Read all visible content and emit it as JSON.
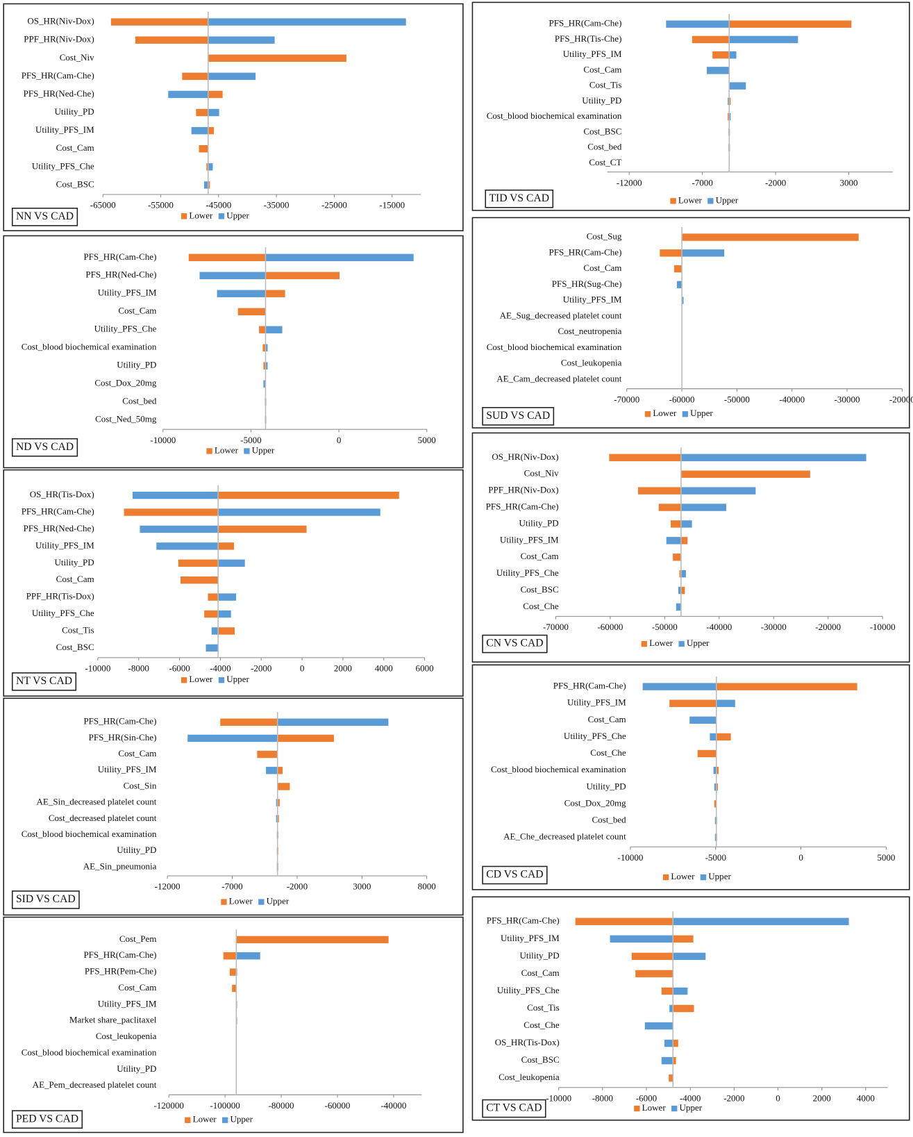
{
  "chart_data": [
    {
      "type": "tornado",
      "title": "NN VS CAD",
      "categories": [
        "OS_HR(Niv-Dox)",
        "PPF_HR(Niv-Dox)",
        "Cost_Niv",
        "PFS_HR(Cam-Che)",
        "PFS_HR(Ned-Che)",
        "Utility_PD",
        "Utility_PFS_IM",
        "Cost_Cam",
        "Utility_PFS_Che",
        "Cost_BSC"
      ],
      "base_value": -46800,
      "series": [
        {
          "name": "Lower",
          "color": "#ed7d31",
          "values": [
            -63600,
            -59400,
            -22900,
            -51300,
            -44300,
            -48900,
            -45800,
            -48400,
            -47100,
            -46500
          ]
        },
        {
          "name": "Upper",
          "color": "#5b9bd5",
          "values": [
            -12600,
            -35300,
            null,
            -38600,
            -53700,
            -44900,
            -49700,
            null,
            -46000,
            -47500
          ]
        }
      ],
      "xlim": [
        -65000,
        -10000
      ],
      "xticks": [
        -65000,
        -55000,
        -45000,
        -35000,
        -25000,
        -15000
      ]
    },
    {
      "type": "tornado",
      "title": "ND VS CAD",
      "categories": [
        "PFS_HR(Cam-Che)",
        "PFS_HR(Ned-Che)",
        "Utility_PFS_IM",
        "Cost_Cam",
        "Utility_PFS_Che",
        "Cost_blood biochemical examination",
        "Utility_PD",
        "Cost_Dox_20mg",
        "Cost_bed",
        "Cost_Ned_50mg"
      ],
      "base_value": -4170,
      "series": [
        {
          "name": "Lower",
          "color": "#ed7d31",
          "values": [
            -8540,
            40,
            -3060,
            -5740,
            -4540,
            -4330,
            -4290,
            null,
            -4210,
            -4210
          ]
        },
        {
          "name": "Upper",
          "color": "#5b9bd5",
          "values": [
            4250,
            -7920,
            -6930,
            null,
            -3220,
            -4050,
            -4050,
            -4290,
            -4130,
            -4130
          ]
        }
      ],
      "xlim": [
        -10000,
        5000
      ],
      "xticks": [
        -10000,
        -5000,
        0,
        5000
      ]
    },
    {
      "type": "tornado",
      "title": "NT VS CAD",
      "categories": [
        "OS_HR(Tis-Dox)",
        "PFS_HR(Cam-Che)",
        "PFS_HR(Ned-Che)",
        "Utility_PFS_IM",
        "Utility_PD",
        "Cost_Cam",
        "PPF_HR(Tis-Dox)",
        "Utility_PFS_Che",
        "Cost_Tis",
        "Cost_BSC"
      ],
      "base_value": -4110,
      "series": [
        {
          "name": "Lower",
          "color": "#ed7d31",
          "values": [
            4750,
            -8720,
            220,
            -3330,
            -6060,
            -5950,
            -4610,
            -4790,
            -3300,
            null
          ]
        },
        {
          "name": "Upper",
          "color": "#5b9bd5",
          "values": [
            -8300,
            3830,
            -7940,
            -7130,
            -2800,
            null,
            -3230,
            -3480,
            -4430,
            -4710
          ]
        }
      ],
      "xlim": [
        -10000,
        6000
      ],
      "xticks": [
        -10000,
        -8000,
        -6000,
        -4000,
        -2000,
        0,
        2000,
        4000,
        6000
      ]
    },
    {
      "type": "tornado",
      "title": "SID VS CAD",
      "categories": [
        "PFS_HR(Cam-Che)",
        "PFS_HR(Sin-Che)",
        "Cost_Cam",
        "Utility_PFS_IM",
        "Cost_Sin",
        "AE_Sin_decreased platelet count",
        "Cost_decreased platelet count",
        "Cost_blood biochemical examination",
        "Utility_PD",
        "AE_Sin_pneumonia"
      ],
      "base_value": -3510,
      "series": [
        {
          "name": "Lower",
          "color": "#ed7d31",
          "values": [
            -7920,
            840,
            -5080,
            -3120,
            -2560,
            -3340,
            -3400,
            -3450,
            -3450,
            -3450
          ]
        },
        {
          "name": "Upper",
          "color": "#5b9bd5",
          "values": [
            5040,
            -10440,
            null,
            -4400,
            null,
            -3620,
            -3620,
            -3560,
            -3560,
            -3560
          ]
        }
      ],
      "xlim": [
        -12000,
        8000
      ],
      "xticks": [
        -12000,
        -7000,
        -2000,
        3000,
        8000
      ]
    },
    {
      "type": "tornado",
      "title": "PED VS CAD",
      "categories": [
        "Cost_Pem",
        "PFS_HR(Cam-Che)",
        "PFS_HR(Pem-Che)",
        "Cost_Cam",
        "Utility_PFS_IM",
        "Market share_paclitaxel",
        "Cost_leukopenia",
        "Cost_blood biochemical examination",
        "Utility_PD",
        "AE_Pem_decreased platelet count"
      ],
      "base_value": -96000,
      "series": [
        {
          "name": "Lower",
          "color": "#ed7d31",
          "values": [
            -41800,
            -100600,
            -98300,
            -97500,
            null,
            null,
            null,
            null,
            null,
            null
          ]
        },
        {
          "name": "Upper",
          "color": "#5b9bd5",
          "values": [
            null,
            -87500,
            -95700,
            null,
            -95700,
            -95700,
            null,
            null,
            null,
            null
          ]
        }
      ],
      "xlim": [
        -120000,
        -30000
      ],
      "xticks": [
        -120000,
        -100000,
        -80000,
        -60000,
        -40000
      ]
    },
    {
      "type": "tornado",
      "title": "TID VS CAD",
      "categories": [
        "PFS_HR(Cam-Che)",
        "PFS_HR(Tis-Che)",
        "Utility_PFS_IM",
        "Cost_Cam",
        "Cost_Tis",
        "Utility_PD",
        "Cost_blood biochemical examination",
        "Cost_BSC",
        "Cost_bed",
        "Cost_CT"
      ],
      "base_value": -5170,
      "series": [
        {
          "name": "Lower",
          "color": "#ed7d31",
          "values": [
            3180,
            -7700,
            -6310,
            null,
            null,
            -5070,
            -5270,
            -5220,
            -5220,
            null
          ]
        },
        {
          "name": "Upper",
          "color": "#5b9bd5",
          "values": [
            -9480,
            -470,
            -4680,
            -6700,
            -4030,
            -5270,
            -5070,
            -5120,
            -5120,
            null
          ]
        }
      ],
      "xlim": [
        -13500,
        6000
      ],
      "xticks": [
        -12000,
        -7000,
        -2000,
        3000
      ]
    },
    {
      "type": "tornado",
      "title": "SUD VS CAD",
      "categories": [
        "Cost_Sug",
        "PFS_HR(Cam-Che)",
        "Cost_Cam",
        "PFS_HR(Sug-Che)",
        "Utility_PFS_IM",
        "AE_Sug_decreased platelet count",
        "Cost_neutropenia",
        "Cost_blood biochemical examination",
        "Cost_leukopenia",
        "AE_Cam_decreased platelet count"
      ],
      "base_value": -60000,
      "series": [
        {
          "name": "Lower",
          "color": "#ed7d31",
          "values": [
            -27900,
            -64000,
            -61400,
            null,
            null,
            null,
            null,
            null,
            null,
            null
          ]
        },
        {
          "name": "Upper",
          "color": "#5b9bd5",
          "values": [
            null,
            -52300,
            null,
            -60900,
            -59700,
            null,
            null,
            null,
            null,
            null
          ]
        }
      ],
      "xlim": [
        -70000,
        -20000
      ],
      "xticks": [
        -70000,
        -60000,
        -50000,
        -40000,
        -30000,
        -20000
      ]
    },
    {
      "type": "tornado",
      "title": "CN VS CAD",
      "categories": [
        "OS_HR(Niv-Dox)",
        "Cost_Niv",
        "PPF_HR(Niv-Dox)",
        "PFS_HR(Cam-Che)",
        "Utility_PD",
        "Utility_PFS_IM",
        "Cost_Cam",
        "Utility_PFS_Che",
        "Cost_BSC",
        "Cost_Che"
      ],
      "base_value": -47000,
      "series": [
        {
          "name": "Lower",
          "color": "#ed7d31",
          "values": [
            -60200,
            -23300,
            -54900,
            -51100,
            -48900,
            -45800,
            -48500,
            -47300,
            -46300,
            null
          ]
        },
        {
          "name": "Upper",
          "color": "#5b9bd5",
          "values": [
            -13000,
            null,
            -33300,
            -38700,
            -45000,
            -49700,
            null,
            -46100,
            -47500,
            -47900
          ]
        }
      ],
      "xlim": [
        -70000,
        -10000
      ],
      "xticks": [
        -70000,
        -60000,
        -50000,
        -40000,
        -30000,
        -20000,
        -10000
      ]
    },
    {
      "type": "tornado",
      "title": "CD VS CAD",
      "categories": [
        "PFS_HR(Cam-Che)",
        "Utility_PFS_IM",
        "Cost_Cam",
        "Utility_PFS_Che",
        "Cost_Che",
        "Cost_blood biochemical examination",
        "Utility_PD",
        "Cost_Dox_20mg",
        "Cost_bed",
        "AE_Che_decreased platelet count"
      ],
      "base_value": -4960,
      "series": [
        {
          "name": "Lower",
          "color": "#ed7d31",
          "values": [
            3300,
            -7710,
            null,
            -4110,
            -6060,
            -4830,
            -4870,
            -5080,
            -4920,
            -4920
          ]
        },
        {
          "name": "Upper",
          "color": "#5b9bd5",
          "values": [
            -9280,
            -3860,
            -6530,
            -5340,
            null,
            -5130,
            -5080,
            null,
            -5040,
            -5040
          ]
        }
      ],
      "xlim": [
        -10000,
        5000
      ],
      "xticks": [
        -10000,
        -5000,
        0,
        5000
      ]
    },
    {
      "type": "tornado",
      "title": "CT VS CAD",
      "categories": [
        "PFS_HR(Cam-Che)",
        "Utility_PFS_IM",
        "Utility_PD",
        "Cost_Cam",
        "Utility_PFS_Che",
        "Cost_Tis",
        "Cost_Che",
        "OS_HR(Tis-Dox)",
        "Cost_BSC",
        "Cost_leukopenia"
      ],
      "base_value": -4790,
      "series": [
        {
          "name": "Lower",
          "color": "#ed7d31",
          "values": [
            -9240,
            -3860,
            -6670,
            -6500,
            -5310,
            -3830,
            null,
            -4550,
            -4650,
            -4980
          ]
        },
        {
          "name": "Upper",
          "color": "#5b9bd5",
          "values": [
            3230,
            -7660,
            -3300,
            null,
            -4120,
            -4950,
            -6070,
            -5180,
            -5310,
            null
          ]
        }
      ],
      "xlim": [
        -10000,
        5000
      ],
      "xticks": [
        -10000,
        -8000,
        -6000,
        -4000,
        -2000,
        0,
        2000,
        4000
      ]
    }
  ]
}
